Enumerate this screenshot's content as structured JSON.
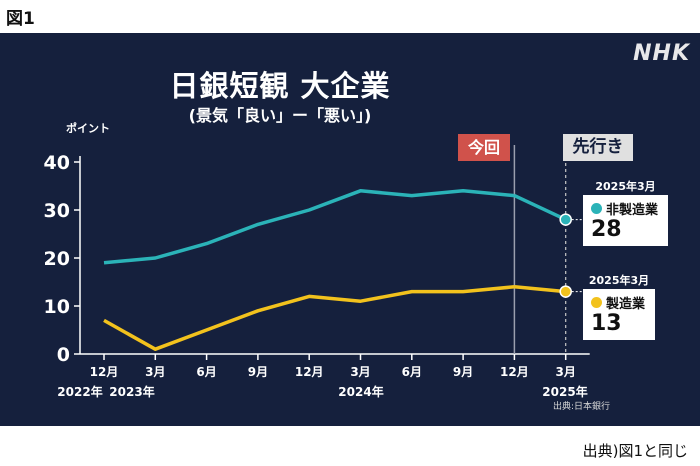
{
  "figure_label": "図1",
  "bottom_source": "出典)図1と同じ",
  "logo": "NHK",
  "chart_data": {
    "type": "line",
    "title": "日銀短観 大企業",
    "subtitle": "(景気「良い」ー「悪い」)",
    "ylabel": "ポイント",
    "ylim": [
      0,
      40
    ],
    "yticks": [
      0,
      10,
      20,
      30,
      40
    ],
    "grid": false,
    "x": [
      "12月",
      "3月",
      "6月",
      "9月",
      "12月",
      "3月",
      "6月",
      "9月",
      "12月",
      "3月"
    ],
    "year_labels": [
      "2022年",
      "2023年",
      "2024年",
      "2025年"
    ],
    "series": [
      {
        "name": "非製造業",
        "color": "#2bb3b8",
        "values": [
          19,
          20,
          23,
          27,
          30,
          34,
          33,
          34,
          33,
          28
        ]
      },
      {
        "name": "製造業",
        "color": "#f2c21d",
        "values": [
          7,
          1,
          5,
          9,
          12,
          11,
          13,
          13,
          14,
          13
        ]
      }
    ],
    "annotations": {
      "current": "今回",
      "forecast": "先行き",
      "callouts": [
        {
          "period": "2025年3月",
          "name": "非製造業",
          "value": "28"
        },
        {
          "period": "2025年3月",
          "name": "製造業",
          "value": "13"
        }
      ]
    },
    "source": "出典:日本銀行"
  }
}
